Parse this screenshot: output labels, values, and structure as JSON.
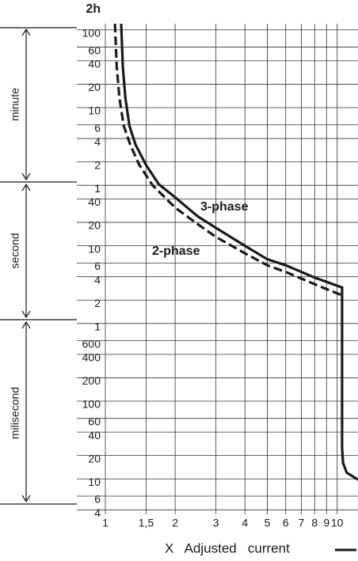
{
  "chart_data": {
    "type": "line",
    "x_label": "X   Adjusted   current",
    "log_x": true,
    "log_y": true,
    "grid": true,
    "xlim": [
      1,
      12.3
    ],
    "xticks": [
      1,
      {
        "value": 1.5,
        "label": "1,5"
      },
      2,
      3,
      4,
      5,
      6,
      7,
      8,
      9,
      10
    ],
    "ylim": [
      0.0035,
      7200
    ],
    "yticks": [
      {
        "value": 7200,
        "label": "2h"
      },
      {
        "value": 6000,
        "label": "100"
      },
      {
        "value": 3600,
        "label": "60"
      },
      {
        "value": 2400,
        "label": "40"
      },
      {
        "value": 1200,
        "label": "20"
      },
      {
        "value": 600,
        "label": "10"
      },
      {
        "value": 360,
        "label": "6"
      },
      {
        "value": 240,
        "label": "4"
      },
      {
        "value": 120,
        "label": "2"
      },
      {
        "value": 60,
        "label": "1"
      },
      40,
      20,
      10,
      6,
      4,
      2,
      1,
      {
        "value": 0.6,
        "label": "600"
      },
      {
        "value": 0.4,
        "label": "400"
      },
      {
        "value": 0.2,
        "label": "200"
      },
      {
        "value": 0.1,
        "label": "100"
      },
      {
        "value": 0.06,
        "label": "60"
      },
      {
        "value": 0.04,
        "label": "40"
      },
      {
        "value": 0.02,
        "label": "20"
      },
      {
        "value": 0.01,
        "label": "10"
      },
      {
        "value": 0.006,
        "label": "6"
      },
      {
        "value": 0.004,
        "label": "4"
      }
    ],
    "sections": [
      "minute",
      "second",
      "milisecond"
    ],
    "series": [
      {
        "name": "3-phase",
        "color": "#1a1a1a",
        "dash": false,
        "x": [
          1.17,
          1.19,
          1.22,
          1.27,
          1.35,
          1.5,
          1.7,
          2,
          2.5,
          3,
          4,
          5,
          6,
          8,
          10.5,
          10.5,
          10.6,
          11,
          12.3
        ],
        "values": [
          7200,
          2000,
          800,
          350,
          200,
          109,
          62,
          42,
          24,
          17,
          10,
          6.7,
          5.6,
          3.9,
          2.9,
          0.025,
          0.016,
          0.012,
          0.0098
        ]
      },
      {
        "name": "2-phase",
        "color": "#1a1a1a",
        "dash": true,
        "x": [
          1.1,
          1.12,
          1.15,
          1.2,
          1.28,
          1.4,
          1.6,
          2,
          2.5,
          3,
          4,
          5,
          6,
          8,
          10.5
        ],
        "values": [
          7200,
          2000,
          800,
          350,
          200,
          110,
          60,
          31,
          19,
          13,
          8,
          5.6,
          4.6,
          3.2,
          2.3
        ]
      }
    ]
  }
}
